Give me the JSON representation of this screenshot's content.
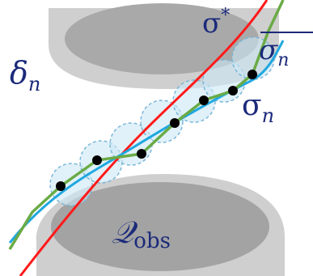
{
  "labels": {
    "delta": {
      "base": "δ",
      "sub": "n"
    },
    "sigma_star": {
      "base": "σ",
      "sup": "*"
    },
    "sigma_bar": {
      "base": "σ",
      "sub": "n"
    },
    "sigma_n": {
      "base": "σ",
      "sub": "n"
    },
    "q_obs": {
      "base": "𝒬",
      "sub": "obs"
    }
  },
  "colors": {
    "obstacle_top": "#a9a9a9",
    "obstacle_rim": "#cfcfcf",
    "obstacle_bottom": "#a3a3a3",
    "red_path": "#ff1a1a",
    "blue_path": "#1fa8e0",
    "green_path": "#6aab46",
    "ball_fill": "#cde8f5",
    "ball_stroke": "#7ab7d8",
    "node": "#000000",
    "label": "#1b2a7a"
  }
}
